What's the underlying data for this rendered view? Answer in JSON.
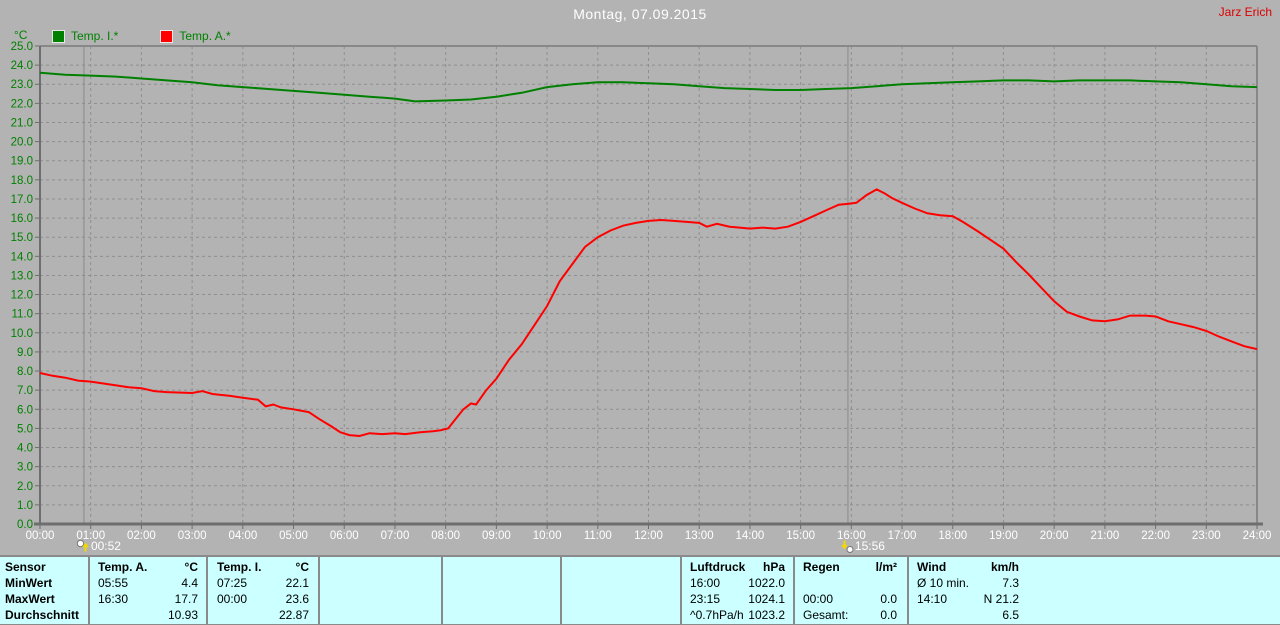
{
  "header": {
    "title": "Montag, 07.09.2015",
    "user": "Jarz Erich"
  },
  "legend": {
    "unit": "°C",
    "series": [
      {
        "label": "Temp. I.*",
        "color": "#008000"
      },
      {
        "label": "Temp. A.*",
        "color": "#ff0000"
      }
    ]
  },
  "chart_data": {
    "type": "line",
    "title": "Montag, 07.09.2015",
    "ylabel": "°C",
    "ylim": [
      0,
      25
    ],
    "grid": true,
    "legend_position": "top-left",
    "x_ticks": [
      "00:00",
      "01:00",
      "02:00",
      "03:00",
      "04:00",
      "05:00",
      "06:00",
      "07:00",
      "08:00",
      "09:00",
      "10:00",
      "11:00",
      "12:00",
      "13:00",
      "14:00",
      "15:00",
      "16:00",
      "17:00",
      "18:00",
      "19:00",
      "20:00",
      "21:00",
      "22:00",
      "23:00",
      "24:00"
    ],
    "y_ticks": [
      "0.0",
      "1.0",
      "2.0",
      "3.0",
      "4.0",
      "5.0",
      "6.0",
      "7.0",
      "8.0",
      "9.0",
      "10.0",
      "11.0",
      "12.0",
      "13.0",
      "14.0",
      "15.0",
      "16.0",
      "17.0",
      "18.0",
      "19.0",
      "20.0",
      "21.0",
      "22.0",
      "23.0",
      "24.0",
      "25.0"
    ],
    "colors": {
      "grid": "#8f8f8f",
      "y_labels": "#008000",
      "x_labels": "#ffffff",
      "frame": "#888888",
      "axis": "#6e6e6e",
      "marker_line": "#8a8a8a"
    },
    "series": [
      {
        "name": "Temp. I.*",
        "color": "#008000",
        "points": [
          [
            0,
            23.6
          ],
          [
            0.5,
            23.5
          ],
          [
            1,
            23.45
          ],
          [
            1.5,
            23.4
          ],
          [
            2,
            23.3
          ],
          [
            2.5,
            23.2
          ],
          [
            3,
            23.1
          ],
          [
            3.5,
            22.95
          ],
          [
            4,
            22.85
          ],
          [
            4.5,
            22.75
          ],
          [
            5,
            22.65
          ],
          [
            5.5,
            22.55
          ],
          [
            6,
            22.45
          ],
          [
            6.5,
            22.35
          ],
          [
            7,
            22.25
          ],
          [
            7.4,
            22.1
          ],
          [
            8,
            22.15
          ],
          [
            8.5,
            22.2
          ],
          [
            9,
            22.35
          ],
          [
            9.5,
            22.55
          ],
          [
            10,
            22.85
          ],
          [
            10.5,
            23.0
          ],
          [
            11,
            23.1
          ],
          [
            11.5,
            23.1
          ],
          [
            12,
            23.05
          ],
          [
            12.5,
            23.0
          ],
          [
            13,
            22.9
          ],
          [
            13.5,
            22.8
          ],
          [
            14,
            22.75
          ],
          [
            14.5,
            22.7
          ],
          [
            15,
            22.7
          ],
          [
            15.5,
            22.75
          ],
          [
            16,
            22.8
          ],
          [
            16.5,
            22.9
          ],
          [
            17,
            23.0
          ],
          [
            17.5,
            23.05
          ],
          [
            18,
            23.1
          ],
          [
            18.5,
            23.15
          ],
          [
            19,
            23.2
          ],
          [
            19.5,
            23.2
          ],
          [
            20,
            23.15
          ],
          [
            20.5,
            23.2
          ],
          [
            21,
            23.2
          ],
          [
            21.5,
            23.2
          ],
          [
            22,
            23.15
          ],
          [
            22.5,
            23.1
          ],
          [
            23,
            23.0
          ],
          [
            23.5,
            22.9
          ],
          [
            24,
            22.85
          ]
        ]
      },
      {
        "name": "Temp. A.*",
        "color": "#ff0000",
        "points": [
          [
            0,
            7.9
          ],
          [
            0.25,
            7.75
          ],
          [
            0.5,
            7.65
          ],
          [
            0.75,
            7.5
          ],
          [
            1,
            7.45
          ],
          [
            1.5,
            7.25
          ],
          [
            1.75,
            7.15
          ],
          [
            2,
            7.1
          ],
          [
            2.25,
            6.95
          ],
          [
            2.5,
            6.9
          ],
          [
            3,
            6.85
          ],
          [
            3.2,
            6.95
          ],
          [
            3.4,
            6.8
          ],
          [
            3.75,
            6.7
          ],
          [
            4,
            6.6
          ],
          [
            4.3,
            6.5
          ],
          [
            4.45,
            6.15
          ],
          [
            4.6,
            6.25
          ],
          [
            4.75,
            6.1
          ],
          [
            5,
            6.0
          ],
          [
            5.3,
            5.85
          ],
          [
            5.5,
            5.5
          ],
          [
            5.75,
            5.1
          ],
          [
            5.92,
            4.8
          ],
          [
            6.1,
            4.65
          ],
          [
            6.3,
            4.6
          ],
          [
            6.5,
            4.75
          ],
          [
            6.75,
            4.7
          ],
          [
            7,
            4.75
          ],
          [
            7.2,
            4.7
          ],
          [
            7.5,
            4.8
          ],
          [
            7.75,
            4.85
          ],
          [
            7.9,
            4.9
          ],
          [
            8.05,
            5.0
          ],
          [
            8.2,
            5.5
          ],
          [
            8.35,
            6.0
          ],
          [
            8.5,
            6.3
          ],
          [
            8.6,
            6.25
          ],
          [
            8.8,
            7.0
          ],
          [
            9,
            7.6
          ],
          [
            9.25,
            8.6
          ],
          [
            9.5,
            9.4
          ],
          [
            9.75,
            10.4
          ],
          [
            10,
            11.4
          ],
          [
            10.25,
            12.7
          ],
          [
            10.5,
            13.6
          ],
          [
            10.75,
            14.5
          ],
          [
            11,
            15.0
          ],
          [
            11.25,
            15.35
          ],
          [
            11.5,
            15.6
          ],
          [
            11.75,
            15.75
          ],
          [
            12,
            15.85
          ],
          [
            12.25,
            15.9
          ],
          [
            12.5,
            15.85
          ],
          [
            12.75,
            15.8
          ],
          [
            13,
            15.75
          ],
          [
            13.15,
            15.55
          ],
          [
            13.35,
            15.7
          ],
          [
            13.6,
            15.55
          ],
          [
            13.8,
            15.5
          ],
          [
            14,
            15.45
          ],
          [
            14.25,
            15.5
          ],
          [
            14.5,
            15.45
          ],
          [
            14.75,
            15.55
          ],
          [
            15,
            15.8
          ],
          [
            15.25,
            16.1
          ],
          [
            15.5,
            16.4
          ],
          [
            15.75,
            16.7
          ],
          [
            15.95,
            16.75
          ],
          [
            16.1,
            16.8
          ],
          [
            16.3,
            17.2
          ],
          [
            16.5,
            17.5
          ],
          [
            16.65,
            17.3
          ],
          [
            16.8,
            17.05
          ],
          [
            17,
            16.8
          ],
          [
            17.25,
            16.5
          ],
          [
            17.5,
            16.25
          ],
          [
            17.75,
            16.15
          ],
          [
            18,
            16.1
          ],
          [
            18.2,
            15.8
          ],
          [
            18.5,
            15.3
          ],
          [
            18.75,
            14.85
          ],
          [
            19,
            14.4
          ],
          [
            19.25,
            13.7
          ],
          [
            19.5,
            13.05
          ],
          [
            19.75,
            12.35
          ],
          [
            20,
            11.65
          ],
          [
            20.25,
            11.1
          ],
          [
            20.5,
            10.85
          ],
          [
            20.75,
            10.65
          ],
          [
            21,
            10.6
          ],
          [
            21.25,
            10.7
          ],
          [
            21.5,
            10.9
          ],
          [
            21.8,
            10.9
          ],
          [
            22,
            10.85
          ],
          [
            22.25,
            10.6
          ],
          [
            22.5,
            10.45
          ],
          [
            22.75,
            10.3
          ],
          [
            23,
            10.1
          ],
          [
            23.25,
            9.8
          ],
          [
            23.5,
            9.55
          ],
          [
            23.75,
            9.3
          ],
          [
            24,
            9.15
          ]
        ]
      }
    ],
    "markers": [
      {
        "time": "00:52",
        "hour": 0.867,
        "type": "moonrise"
      },
      {
        "time": "15:56",
        "hour": 15.933,
        "type": "moonset"
      }
    ]
  },
  "stats_table": {
    "row_labels": [
      "Sensor",
      "MinWert",
      "MaxWert",
      "Durchschnitt"
    ],
    "groups": [
      {
        "name": "Temp. A.",
        "unit": "°C",
        "rows": [
          [
            "05:55",
            "4.4"
          ],
          [
            "16:30",
            "17.7"
          ],
          [
            "",
            "10.93"
          ]
        ]
      },
      {
        "name": "Temp. I.",
        "unit": "°C",
        "rows": [
          [
            "07:25",
            "22.1"
          ],
          [
            "00:00",
            "23.6"
          ],
          [
            "",
            "22.87"
          ]
        ]
      },
      {
        "name": "Luftdruck",
        "unit": "hPa",
        "rows": [
          [
            "16:00",
            "1022.0"
          ],
          [
            "23:15",
            "1024.1"
          ],
          [
            "^0.7hPa/h",
            "1023.2"
          ]
        ]
      },
      {
        "name": "Regen",
        "unit": "l/m²",
        "rows": [
          [
            "",
            ""
          ],
          [
            "00:00",
            "0.0"
          ],
          [
            "Gesamt:",
            "0.0"
          ]
        ]
      },
      {
        "name": "Wind",
        "unit": "km/h",
        "rows": [
          [
            "Ø 10 min.",
            "7.3"
          ],
          [
            "14:10",
            "N 21.2"
          ],
          [
            "",
            "6.5"
          ]
        ]
      }
    ]
  },
  "colors": {
    "background": "#b3b3b3",
    "table_bg": "#ccffff",
    "title": "#ffffff",
    "user": "#dd0000"
  }
}
